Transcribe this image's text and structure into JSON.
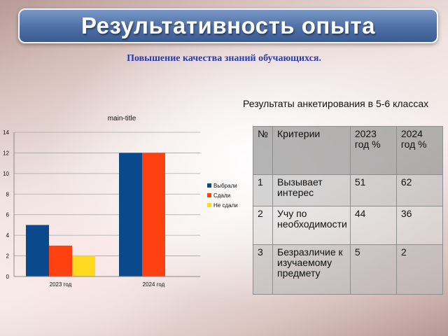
{
  "header": {
    "title": "Результативность опыта",
    "subtitle": "Повышение качества знаний обучающихся."
  },
  "survey": {
    "caption": "Результаты анкетирования в 5-6 классах",
    "columns": [
      "№",
      "Критерии",
      "2023 год %",
      "2024 год %"
    ],
    "rows": [
      {
        "num": "1",
        "criterion": "Вызывает интерес",
        "y2023": "51",
        "y2024": "62"
      },
      {
        "num": "2",
        "criterion": "Учу по необходимости",
        "y2023": "44",
        "y2024": "36"
      },
      {
        "num": "3",
        "criterion": "Безразличие к изучаемому предмету",
        "y2023": "5",
        "y2024": "2"
      }
    ]
  },
  "chart_data": {
    "type": "bar",
    "title": "main-title",
    "categories": [
      "2023 год",
      "2024 год"
    ],
    "series": [
      {
        "name": "Выбрали",
        "values": [
          5,
          12
        ],
        "color": "#0a4a8c"
      },
      {
        "name": "Сдали",
        "values": [
          3,
          12
        ],
        "color": "#ff4010"
      },
      {
        "name": "Не сдали",
        "values": [
          2,
          0
        ],
        "color": "#ffd820"
      }
    ],
    "ylim": [
      0,
      14
    ],
    "yticks": [
      0,
      2,
      4,
      6,
      8,
      10,
      12,
      14
    ],
    "grid": true,
    "legend": "right"
  }
}
